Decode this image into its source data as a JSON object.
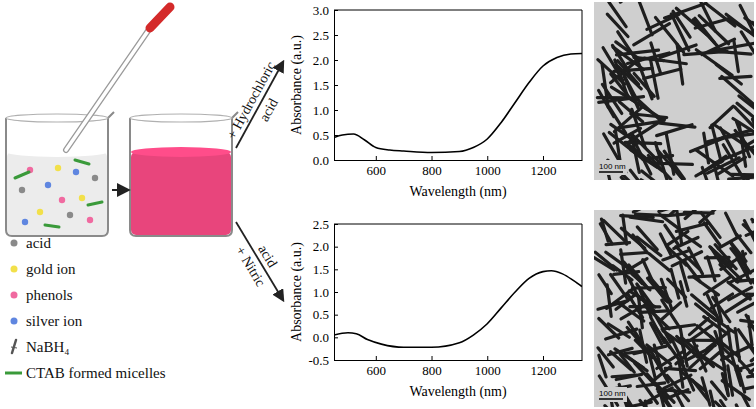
{
  "schematic": {
    "legend": [
      {
        "label": "acid",
        "color": "#8a8a8a",
        "marker": "dot"
      },
      {
        "label": "gold ion",
        "color": "#f2e04a",
        "marker": "dot"
      },
      {
        "label": "phenols",
        "color": "#f06aa0",
        "marker": "dot"
      },
      {
        "label": "silver ion",
        "color": "#5f86e0",
        "marker": "dot"
      },
      {
        "label": "NaBH₄",
        "color": "#555555",
        "marker": "dropper"
      },
      {
        "label": "CTAB formed micelles",
        "color": "#3a9a3a",
        "marker": "line"
      }
    ],
    "solution_color": "#e8457c",
    "arrow_labels": [
      {
        "lines": [
          "+ Hydrochloric",
          "acid"
        ]
      },
      {
        "lines": [
          "acid",
          "+ Nitric"
        ]
      }
    ]
  },
  "chart_data": [
    {
      "type": "line",
      "xlabel": "Wavelength (nm)",
      "ylabel": "Absorbance (a.u.)",
      "x": [
        450,
        480,
        520,
        560,
        600,
        650,
        700,
        800,
        900,
        950,
        1000,
        1050,
        1100,
        1150,
        1200,
        1250,
        1300,
        1340
      ],
      "values": [
        0.45,
        0.5,
        0.52,
        0.4,
        0.25,
        0.2,
        0.18,
        0.15,
        0.17,
        0.25,
        0.42,
        0.75,
        1.15,
        1.55,
        1.88,
        2.05,
        2.12,
        2.13
      ],
      "color": "#000000",
      "xlim": [
        450,
        1340
      ],
      "xticks": [
        600,
        800,
        1000,
        1200
      ],
      "ylim": [
        0,
        3
      ],
      "yticks": [
        {
          "value": 0,
          "label": "0.0"
        },
        {
          "value": 0.5,
          "label": "0.5"
        },
        {
          "value": 1,
          "label": "1.0"
        },
        {
          "value": 1.5,
          "label": "1.5"
        },
        {
          "value": 2,
          "label": "2.0"
        },
        {
          "value": 2.5,
          "label": "2.5"
        },
        {
          "value": 3,
          "label": "3.0"
        }
      ],
      "grid": false
    },
    {
      "type": "line",
      "xlabel": "Wavelength (nm)",
      "ylabel": "Absorbance (a.u.)",
      "x": [
        450,
        500,
        530,
        570,
        620,
        700,
        800,
        900,
        950,
        1000,
        1050,
        1100,
        1150,
        1200,
        1230,
        1270,
        1310,
        1340
      ],
      "values": [
        0.05,
        0.1,
        0.08,
        -0.05,
        -0.15,
        -0.22,
        -0.22,
        -0.12,
        0.05,
        0.3,
        0.65,
        1.0,
        1.3,
        1.45,
        1.47,
        1.4,
        1.25,
        1.12
      ],
      "color": "#000000",
      "xlim": [
        450,
        1340
      ],
      "xticks": [
        600,
        800,
        1000,
        1200
      ],
      "ylim": [
        -0.5,
        2.5
      ],
      "yticks": [
        {
          "value": -0.5,
          "label": "-0.5"
        },
        {
          "value": 0,
          "label": "0.0"
        },
        {
          "value": 0.5,
          "label": "0.5"
        },
        {
          "value": 1,
          "label": "1.0"
        },
        {
          "value": 1.5,
          "label": "1.5"
        },
        {
          "value": 2,
          "label": "2.0"
        },
        {
          "value": 2.5,
          "label": "2.5"
        }
      ],
      "grid": false
    }
  ],
  "images": [
    {
      "scale_bar": "100 nm"
    },
    {
      "scale_bar": "100 nm"
    }
  ]
}
